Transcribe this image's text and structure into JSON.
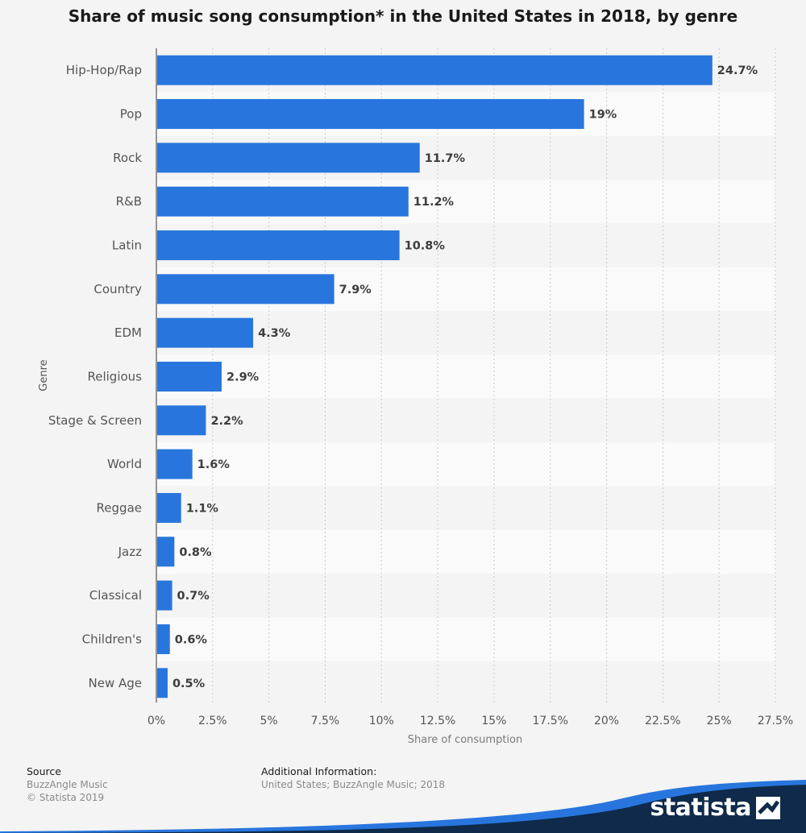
{
  "title": "Share of music song consumption* in the United States in 2018, by genre",
  "chart_data": {
    "type": "bar",
    "orientation": "horizontal",
    "categories": [
      "Hip-Hop/Rap",
      "Pop",
      "Rock",
      "R&B",
      "Latin",
      "Country",
      "EDM",
      "Religious",
      "Stage & Screen",
      "World",
      "Reggae",
      "Jazz",
      "Classical",
      "Children's",
      "New Age"
    ],
    "values": [
      24.7,
      19,
      11.7,
      11.2,
      10.8,
      7.9,
      4.3,
      2.9,
      2.2,
      1.6,
      1.1,
      0.8,
      0.7,
      0.6,
      0.5
    ],
    "value_labels": [
      "24.7%",
      "19%",
      "11.7%",
      "11.2%",
      "10.8%",
      "7.9%",
      "4.3%",
      "2.9%",
      "2.2%",
      "1.6%",
      "1.1%",
      "0.8%",
      "0.7%",
      "0.6%",
      "0.5%"
    ],
    "xlabel": "Share of consumption",
    "ylabel": "Genre",
    "xlim": [
      0,
      27.5
    ],
    "xticks": [
      0,
      2.5,
      5,
      7.5,
      10,
      12.5,
      15,
      17.5,
      20,
      22.5,
      25,
      27.5
    ],
    "xtick_labels": [
      "0%",
      "2.5%",
      "5%",
      "7.5%",
      "10%",
      "12.5%",
      "15%",
      "17.5%",
      "20%",
      "22.5%",
      "25%",
      "27.5%"
    ],
    "bar_color": "#2876dd",
    "grid": true,
    "legend": "none"
  },
  "footer": {
    "source_heading": "Source",
    "source_lines": [
      "BuzzAngle Music",
      "© Statista 2019"
    ],
    "info_heading": "Additional Information:",
    "info_line": "United States; BuzzAngle Music; 2018"
  },
  "brand": {
    "name": "statista",
    "icon": "statista-logo-icon",
    "wave_color": "#0f2a4a",
    "accent_color": "#2876dd"
  }
}
